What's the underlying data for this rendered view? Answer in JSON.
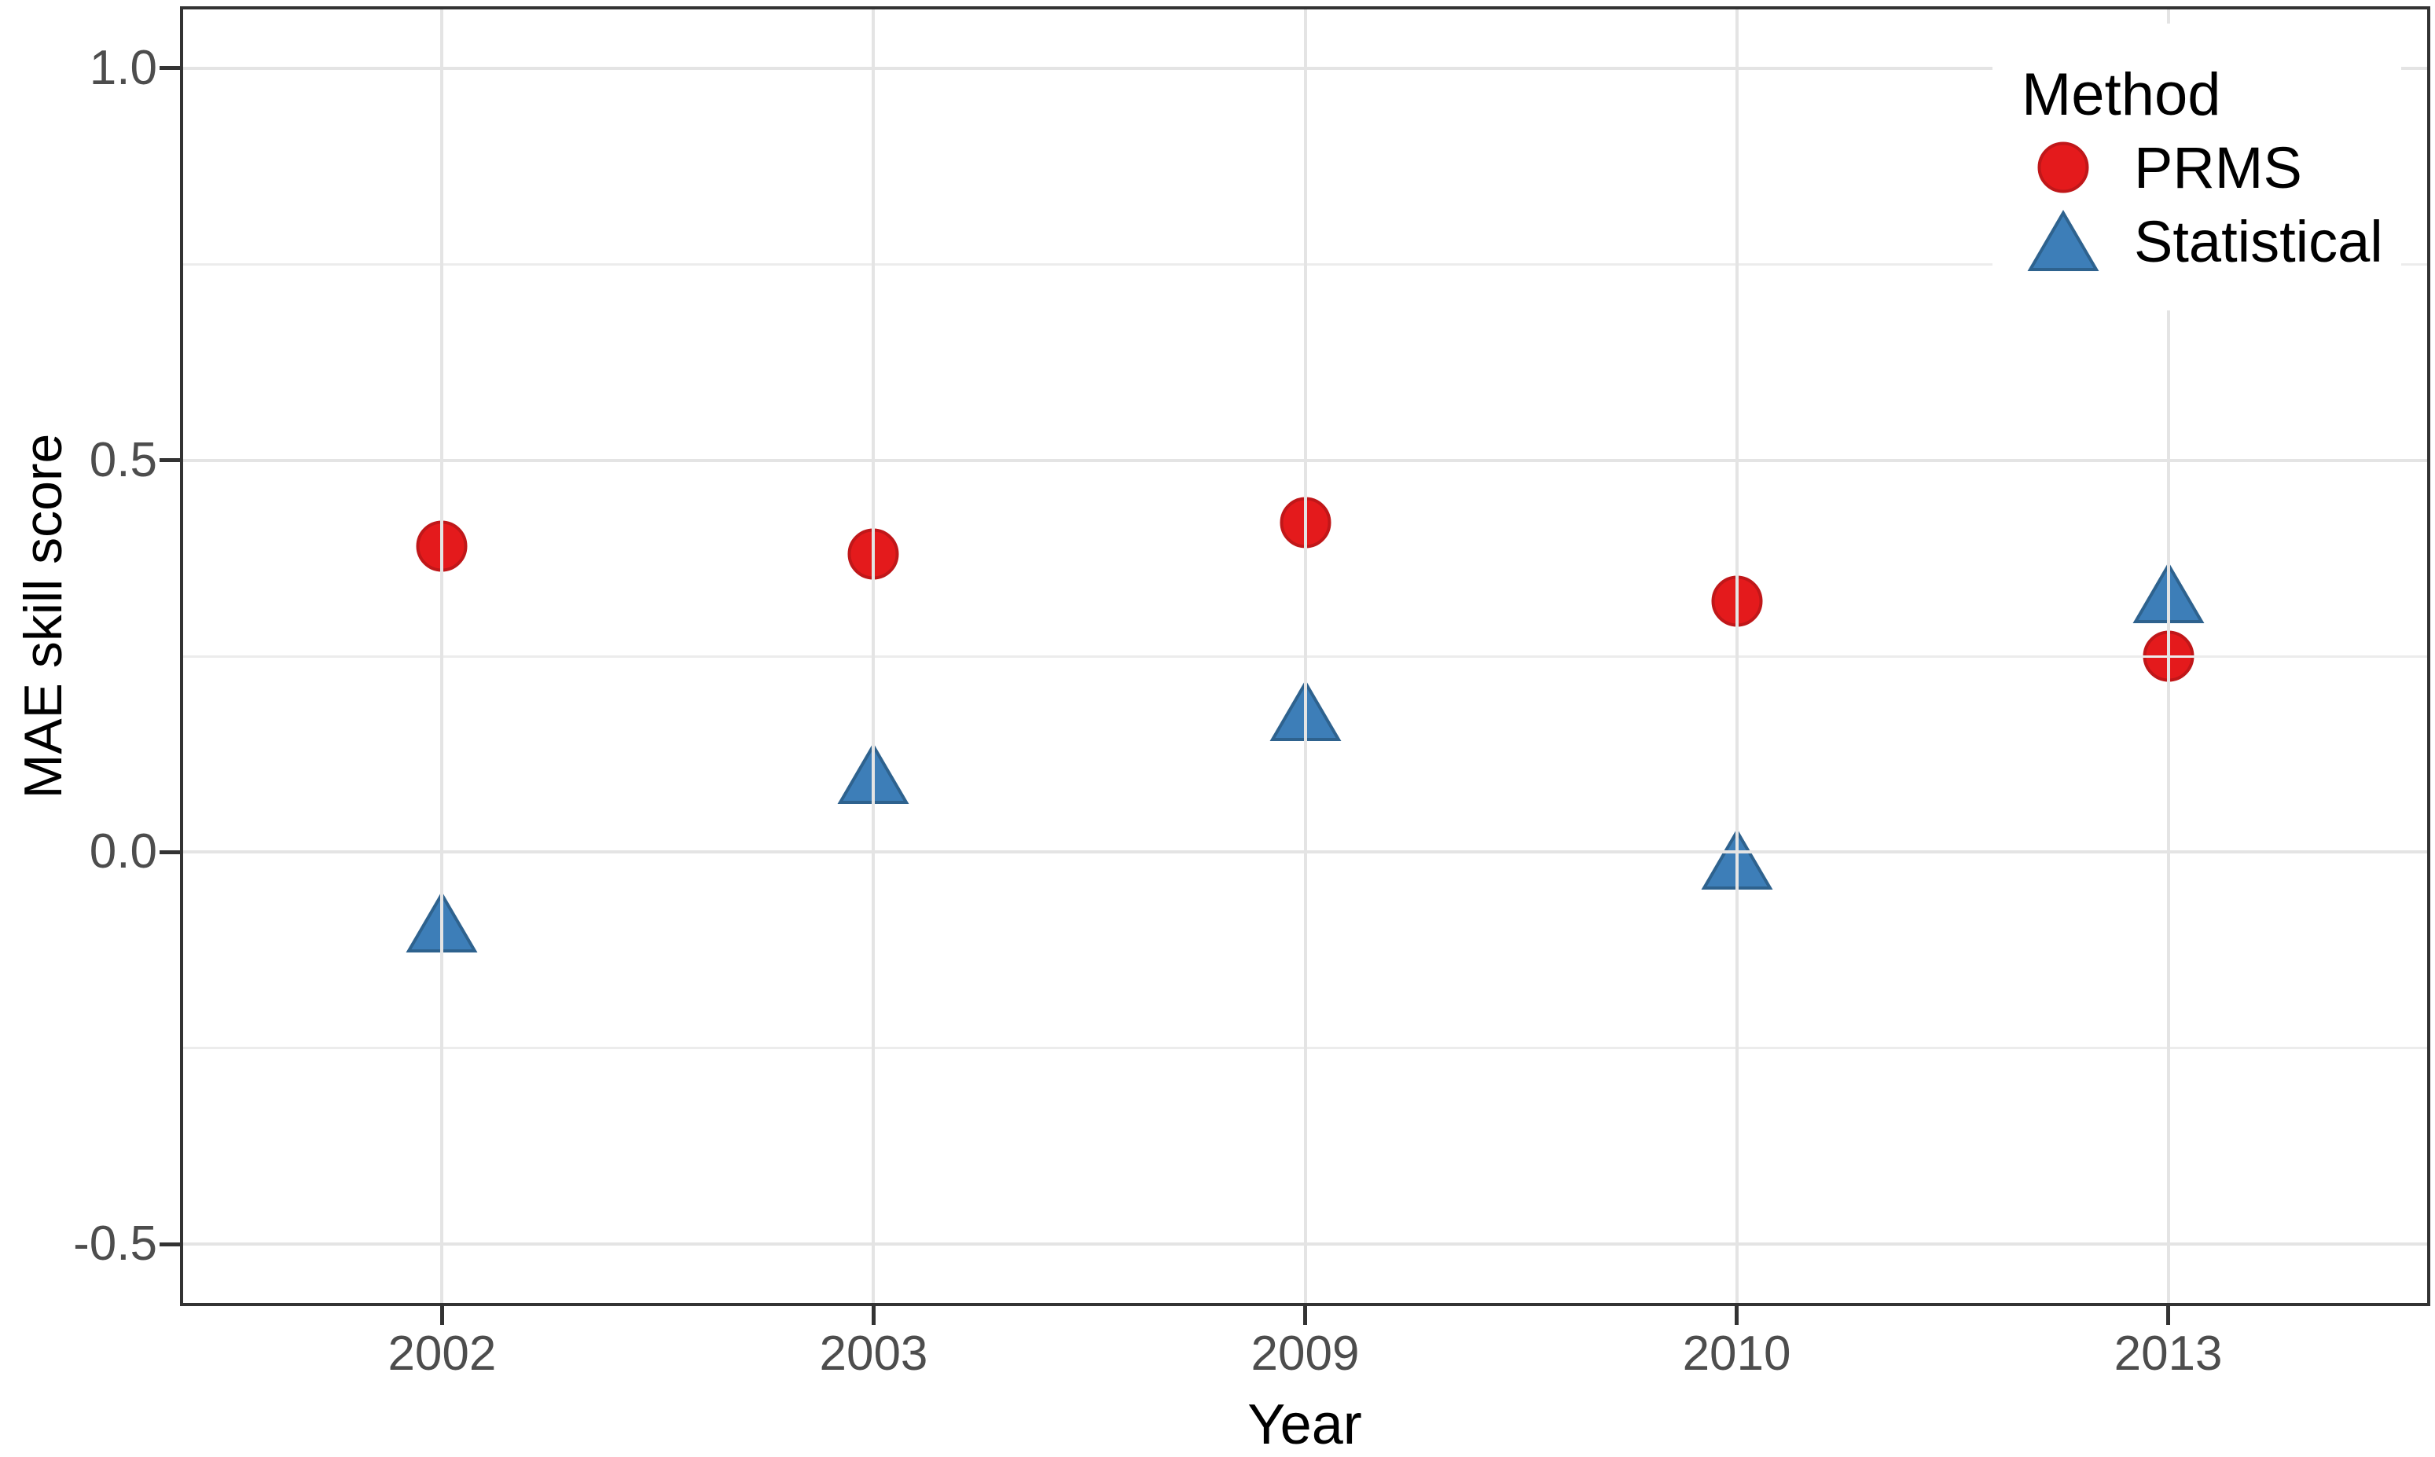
{
  "chart_data": {
    "type": "scatter",
    "title": "",
    "xlabel": "Year",
    "ylabel": "MAE skill score",
    "categories": [
      "2002",
      "2003",
      "2009",
      "2010",
      "2013"
    ],
    "series": [
      {
        "name": "PRMS",
        "marker": "circle",
        "color": "#E41A1C",
        "edge_color": "#C01719",
        "values": [
          0.39,
          0.38,
          0.42,
          0.32,
          0.25
        ]
      },
      {
        "name": "Statistical",
        "marker": "triangle",
        "color": "#3D7EB8",
        "edge_color": "#2E628E",
        "values": [
          -0.09,
          0.1,
          0.18,
          -0.01,
          0.33
        ]
      }
    ],
    "legend_title": "Method",
    "legend_position": "top-right-inside",
    "ylim": [
      -0.575,
      1.075
    ],
    "y_major_ticks": [
      1.0,
      0.5,
      0.0,
      -0.5
    ],
    "y_tick_labels": [
      "1.0",
      "0.5",
      "0.0",
      "-0.5"
    ],
    "y_minor_gridlines": [
      0.75,
      0.25,
      -0.25
    ],
    "grid": "horizontal major+minor, vertical major per category",
    "colors": {
      "background": "#FFFFFF",
      "panel_border": "#333333",
      "major_grid": "#E4E4E4",
      "minor_grid": "#ECECEC",
      "tick_mark": "#333333",
      "tick_label": "#4D4D4D",
      "axis_title": "#000000",
      "legend_text": "#000000"
    }
  }
}
